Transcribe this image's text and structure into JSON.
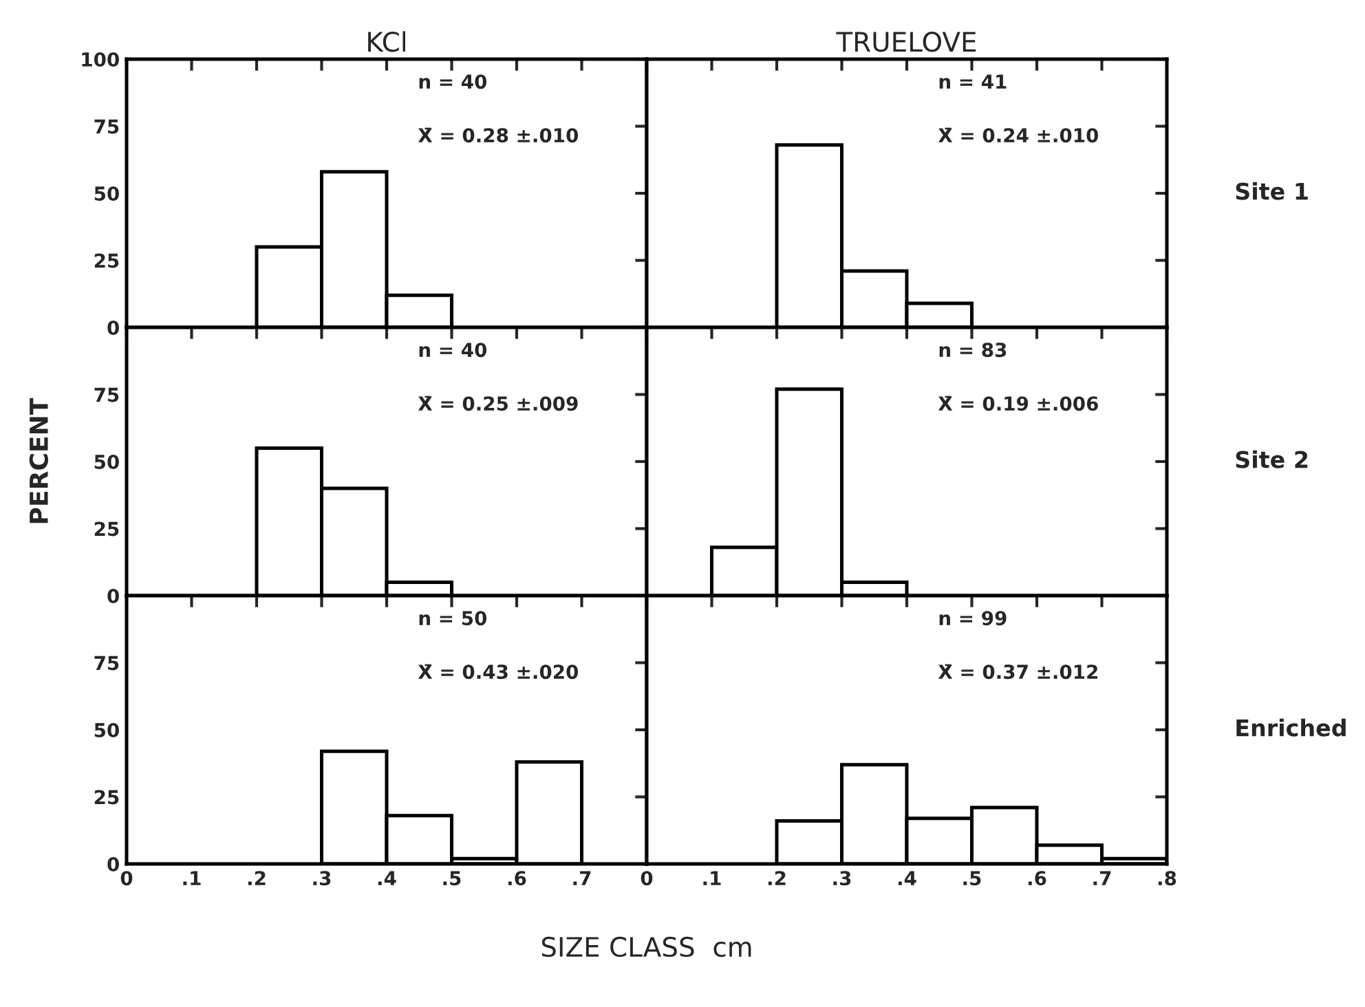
{
  "chart_data": [
    {
      "type": "histogram",
      "title": "KCl",
      "bins": [
        0.2,
        0.3,
        0.4,
        0.5
      ],
      "values": [
        30,
        58,
        12
      ],
      "xlim": [
        0,
        0.8
      ],
      "ylim": [
        0,
        100
      ],
      "yticks": [
        0,
        25,
        50,
        75,
        100
      ],
      "xticks": [
        0,
        0.1,
        0.2,
        0.3,
        0.4,
        0.5,
        0.6,
        0.7,
        0.8
      ],
      "tick_labels": "y",
      "annotations": [
        "n = 40",
        "X̄ = 0.28 ±.010"
      ]
    },
    {
      "type": "histogram",
      "title": "TRUELOVE",
      "bins": [
        0.2,
        0.3,
        0.4,
        0.5
      ],
      "values": [
        68,
        21,
        9
      ],
      "xlim": [
        0,
        0.8
      ],
      "ylim": [
        0,
        100
      ],
      "yticks": [
        0,
        25,
        50,
        75,
        100
      ],
      "xticks": [
        0,
        0.1,
        0.2,
        0.3,
        0.4,
        0.5,
        0.6,
        0.7,
        0.8
      ],
      "tick_labels": false,
      "y2label": "Site 1",
      "annotations": [
        "n = 41",
        "X̄ = 0.24 ±.010"
      ]
    },
    {
      "type": "histogram",
      "ylabel": "PERCENT",
      "bins": [
        0.2,
        0.3,
        0.4,
        0.5
      ],
      "values": [
        55,
        40,
        5
      ],
      "xlim": [
        0,
        0.8
      ],
      "ylim": [
        0,
        100
      ],
      "yticks": [
        0,
        25,
        50,
        75,
        {
          "value": 100,
          "label": null
        }
      ],
      "xticks": [
        0,
        0.1,
        0.2,
        0.3,
        0.4,
        0.5,
        0.6,
        0.7,
        0.8
      ],
      "tick_labels": "y",
      "annotations": [
        "n = 40",
        "X̄ = 0.25 ±.009"
      ]
    },
    {
      "type": "histogram",
      "bins": [
        0.1,
        0.2,
        0.3,
        0.4
      ],
      "values": [
        18,
        77,
        5
      ],
      "xlim": [
        0,
        0.8
      ],
      "ylim": [
        0,
        100
      ],
      "yticks": [
        0,
        25,
        50,
        75,
        100
      ],
      "xticks": [
        0,
        0.1,
        0.2,
        0.3,
        0.4,
        0.5,
        0.6,
        0.7,
        0.8
      ],
      "tick_labels": false,
      "y2label": "Site 2",
      "annotations": [
        "n = 83",
        "X̄ = 0.19 ±.006"
      ]
    },
    {
      "type": "histogram",
      "xlabel": "SIZE CLASS  cm",
      "bins": [
        0.3,
        0.4,
        0.5,
        0.6,
        0.7
      ],
      "values": [
        42,
        18,
        2,
        38
      ],
      "xlim": [
        0,
        0.8
      ],
      "ylim": [
        0,
        100
      ],
      "yticks": [
        0,
        25,
        50,
        75,
        {
          "value": 100,
          "label": null
        }
      ],
      "xticks": [
        {
          "value": 0,
          "label": "0"
        },
        {
          "value": 0.1,
          "label": ".1"
        },
        {
          "value": 0.2,
          "label": ".2"
        },
        {
          "value": 0.3,
          "label": ".3"
        },
        {
          "value": 0.4,
          "label": ".4"
        },
        {
          "value": 0.5,
          "label": ".5"
        },
        {
          "value": 0.6,
          "label": ".6"
        },
        {
          "value": 0.7,
          "label": ".7"
        },
        {
          "value": 0.8,
          "label": null
        }
      ],
      "annotations": [
        "n = 50",
        "X̄ = 0.43 ±.020"
      ]
    },
    {
      "type": "histogram",
      "bins": [
        0.2,
        0.3,
        0.4,
        0.5,
        0.6,
        0.7,
        0.8
      ],
      "values": [
        16,
        37,
        17,
        21,
        7,
        2
      ],
      "xlim": [
        0,
        0.8
      ],
      "ylim": [
        0,
        100
      ],
      "yticks": [
        0,
        25,
        50,
        75,
        100
      ],
      "xticks": [
        {
          "value": 0,
          "label": "0"
        },
        {
          "value": 0.1,
          "label": ".1"
        },
        {
          "value": 0.2,
          "label": ".2"
        },
        {
          "value": 0.3,
          "label": ".3"
        },
        {
          "value": 0.4,
          "label": ".4"
        },
        {
          "value": 0.5,
          "label": ".5"
        },
        {
          "value": 0.6,
          "label": ".6"
        },
        {
          "value": 0.7,
          "label": ".7"
        },
        {
          "value": 0.8,
          "label": ".8"
        }
      ],
      "tick_labels": "x",
      "y2label": "Enriched",
      "annotations": [
        "n = 99",
        "X̄ = 0.37 ±.012"
      ]
    }
  ]
}
